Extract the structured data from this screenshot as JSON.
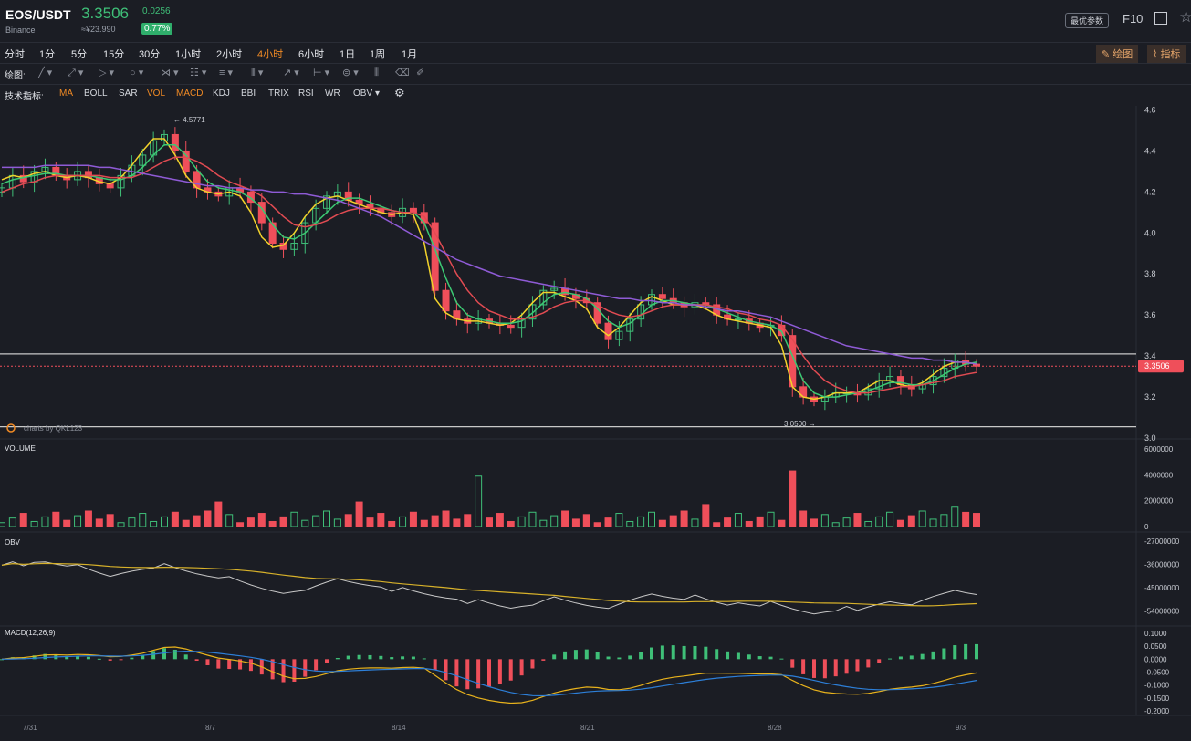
{
  "header": {
    "pair": "EOS/USDT",
    "exchange": "Binance",
    "price": "3.3506",
    "cny": "≈¥23.990",
    "change": "0.0256",
    "change_pct": "0.77%",
    "best_params": "最优参数",
    "f10": "F10"
  },
  "periods": {
    "items": [
      "分时",
      "1分",
      "5分",
      "15分",
      "30分",
      "1小时",
      "2小时",
      "4小时",
      "6小时",
      "1日",
      "1周",
      "1月"
    ],
    "active": "4小时",
    "draw_label": "绘图",
    "indicator_label": "指标"
  },
  "tools": {
    "label": "绘图:"
  },
  "indicators": {
    "label": "技术指标:",
    "items": [
      "MA",
      "BOLL",
      "SAR",
      "VOL",
      "MACD",
      "KDJ",
      "BBI",
      "TRIX",
      "RSI",
      "WR",
      "OBV"
    ],
    "active": [
      "MA",
      "VOL",
      "MACD"
    ]
  },
  "colors": {
    "up": "#3fbf78",
    "down": "#ef4f5a",
    "ma1": "#f2d22b",
    "ma2": "#3cc873",
    "ma3": "#e14b52",
    "ma4": "#8f5bd6"
  },
  "chart_data": [
    {
      "type": "line",
      "panel": "price",
      "title": "",
      "x_ticks": [
        "7/31",
        "8/7",
        "8/14",
        "8/21",
        "8/28",
        "9/3"
      ],
      "y_ticks": [
        "4.6",
        "4.4",
        "4.2",
        "4.0",
        "3.8",
        "3.6",
        "3.4",
        "3.2",
        "3.0"
      ],
      "ylim": [
        3.0,
        4.62
      ],
      "series": [
        {
          "type": "candlestick",
          "values_close": [
            4.22,
            4.28,
            4.25,
            4.3,
            4.32,
            4.28,
            4.26,
            4.3,
            4.27,
            4.24,
            4.22,
            4.28,
            4.33,
            4.38,
            4.45,
            4.48,
            4.4,
            4.3,
            4.22,
            4.2,
            4.18,
            4.22,
            4.2,
            4.15,
            4.05,
            3.95,
            3.92,
            3.95,
            4.05,
            4.12,
            4.18,
            4.2,
            4.16,
            4.14,
            4.12,
            4.1,
            4.08,
            4.12,
            4.1,
            4.05,
            3.72,
            3.62,
            3.58,
            3.56,
            3.58,
            3.56,
            3.55,
            3.54,
            3.58,
            3.65,
            3.72,
            3.73,
            3.7,
            3.68,
            3.66,
            3.56,
            3.48,
            3.52,
            3.58,
            3.65,
            3.7,
            3.68,
            3.66,
            3.64,
            3.66,
            3.65,
            3.6,
            3.58,
            3.58,
            3.56,
            3.54,
            3.55,
            3.5,
            3.25,
            3.2,
            3.18,
            3.2,
            3.22,
            3.22,
            3.21,
            3.24,
            3.28,
            3.3,
            3.26,
            3.24,
            3.26,
            3.3,
            3.34,
            3.38,
            3.36,
            3.3506
          ]
        },
        {
          "name": "",
          "values": [
            4.26,
            4.28,
            4.27,
            4.29,
            4.3,
            4.28,
            4.27,
            4.28,
            4.27,
            4.25,
            4.24,
            4.27,
            4.33,
            4.4,
            4.46,
            4.46,
            4.38,
            4.28,
            4.22,
            4.2,
            4.19,
            4.2,
            4.18,
            4.1,
            3.98,
            3.93,
            3.94,
            4.0,
            4.08,
            4.14,
            4.17,
            4.18,
            4.16,
            4.14,
            4.12,
            4.1,
            4.09,
            4.1,
            4.09,
            3.95,
            3.68,
            3.61,
            3.58,
            3.57,
            3.57,
            3.56,
            3.55,
            3.56,
            3.6,
            3.66,
            3.71,
            3.71,
            3.69,
            3.67,
            3.63,
            3.54,
            3.5,
            3.54,
            3.6,
            3.66,
            3.69,
            3.67,
            3.65,
            3.65,
            3.65,
            3.63,
            3.6,
            3.58,
            3.57,
            3.56,
            3.55,
            3.54,
            3.45,
            3.25,
            3.2,
            3.19,
            3.2,
            3.22,
            3.22,
            3.22,
            3.25,
            3.28,
            3.28,
            3.26,
            3.25,
            3.27,
            3.31,
            3.35,
            3.37,
            3.37,
            3.36
          ]
        },
        {
          "name": "",
          "values": [
            4.24,
            4.26,
            4.27,
            4.28,
            4.29,
            4.29,
            4.28,
            4.28,
            4.28,
            4.27,
            4.26,
            4.26,
            4.28,
            4.32,
            4.38,
            4.43,
            4.43,
            4.38,
            4.31,
            4.25,
            4.22,
            4.21,
            4.2,
            4.17,
            4.12,
            4.04,
            3.98,
            3.97,
            4.0,
            4.05,
            4.1,
            4.15,
            4.17,
            4.17,
            4.15,
            4.13,
            4.11,
            4.1,
            4.1,
            4.05,
            3.92,
            3.78,
            3.66,
            3.6,
            3.58,
            3.57,
            3.56,
            3.56,
            3.57,
            3.61,
            3.66,
            3.7,
            3.71,
            3.7,
            3.68,
            3.63,
            3.57,
            3.54,
            3.56,
            3.6,
            3.65,
            3.67,
            3.67,
            3.66,
            3.65,
            3.65,
            3.63,
            3.61,
            3.59,
            3.57,
            3.56,
            3.55,
            3.52,
            3.4,
            3.28,
            3.22,
            3.2,
            3.2,
            3.21,
            3.22,
            3.23,
            3.25,
            3.27,
            3.27,
            3.26,
            3.26,
            3.28,
            3.31,
            3.34,
            3.36,
            3.37
          ]
        },
        {
          "name": "",
          "values": [
            4.2,
            4.22,
            4.24,
            4.25,
            4.27,
            4.28,
            4.28,
            4.28,
            4.28,
            4.28,
            4.27,
            4.27,
            4.27,
            4.29,
            4.32,
            4.35,
            4.37,
            4.37,
            4.35,
            4.32,
            4.28,
            4.25,
            4.23,
            4.21,
            4.18,
            4.13,
            4.08,
            4.04,
            4.03,
            4.04,
            4.06,
            4.09,
            4.11,
            4.12,
            4.12,
            4.12,
            4.11,
            4.1,
            4.1,
            4.08,
            4.0,
            3.9,
            3.8,
            3.72,
            3.66,
            3.62,
            3.6,
            3.58,
            3.58,
            3.59,
            3.61,
            3.64,
            3.66,
            3.67,
            3.67,
            3.65,
            3.62,
            3.6,
            3.59,
            3.6,
            3.62,
            3.64,
            3.65,
            3.65,
            3.65,
            3.65,
            3.64,
            3.63,
            3.61,
            3.6,
            3.58,
            3.57,
            3.55,
            3.48,
            3.4,
            3.33,
            3.28,
            3.25,
            3.23,
            3.22,
            3.22,
            3.23,
            3.24,
            3.25,
            3.25,
            3.26,
            3.27,
            3.28,
            3.3,
            3.31,
            3.32
          ]
        },
        {
          "name": "",
          "values": [
            4.32,
            4.32,
            4.32,
            4.32,
            4.33,
            4.33,
            4.33,
            4.33,
            4.33,
            4.32,
            4.32,
            4.31,
            4.3,
            4.29,
            4.28,
            4.27,
            4.26,
            4.25,
            4.24,
            4.23,
            4.23,
            4.22,
            4.22,
            4.21,
            4.21,
            4.2,
            4.2,
            4.19,
            4.19,
            4.18,
            4.17,
            4.16,
            4.14,
            4.12,
            4.1,
            4.08,
            4.05,
            4.02,
            3.99,
            3.96,
            3.93,
            3.9,
            3.87,
            3.85,
            3.83,
            3.81,
            3.79,
            3.78,
            3.77,
            3.76,
            3.75,
            3.74,
            3.73,
            3.72,
            3.71,
            3.7,
            3.69,
            3.68,
            3.68,
            3.67,
            3.67,
            3.66,
            3.66,
            3.65,
            3.65,
            3.64,
            3.63,
            3.62,
            3.62,
            3.61,
            3.6,
            3.59,
            3.57,
            3.55,
            3.53,
            3.51,
            3.49,
            3.47,
            3.45,
            3.44,
            3.43,
            3.42,
            3.41,
            3.4,
            3.39,
            3.39,
            3.38,
            3.38,
            3.37,
            3.37,
            3.36
          ]
        }
      ],
      "annotations": {
        "high": "← 4.5771",
        "low": "3.0500 →",
        "last_price": "3.3506",
        "credit": "charts by QKL123"
      }
    },
    {
      "type": "bar",
      "panel": "volume",
      "title": "VOLUME",
      "y_ticks": [
        "6000000",
        "4000000",
        "2000000",
        "0"
      ],
      "ylim": [
        0,
        6000000
      ]
    },
    {
      "type": "line",
      "panel": "obv",
      "title": "OBV",
      "y_ticks": [
        "-27000000",
        "-36000000",
        "-45000000",
        "-54000000"
      ],
      "ylim": [
        -58000000,
        -27000000
      ]
    },
    {
      "type": "bar",
      "panel": "macd",
      "title": "MACD(12,26,9)",
      "y_ticks": [
        "0.1000",
        "0.0500",
        "0.0000",
        "-0.0500",
        "-0.1000",
        "-0.1500",
        "-0.2000"
      ],
      "ylim": [
        -0.2,
        0.1
      ]
    }
  ]
}
